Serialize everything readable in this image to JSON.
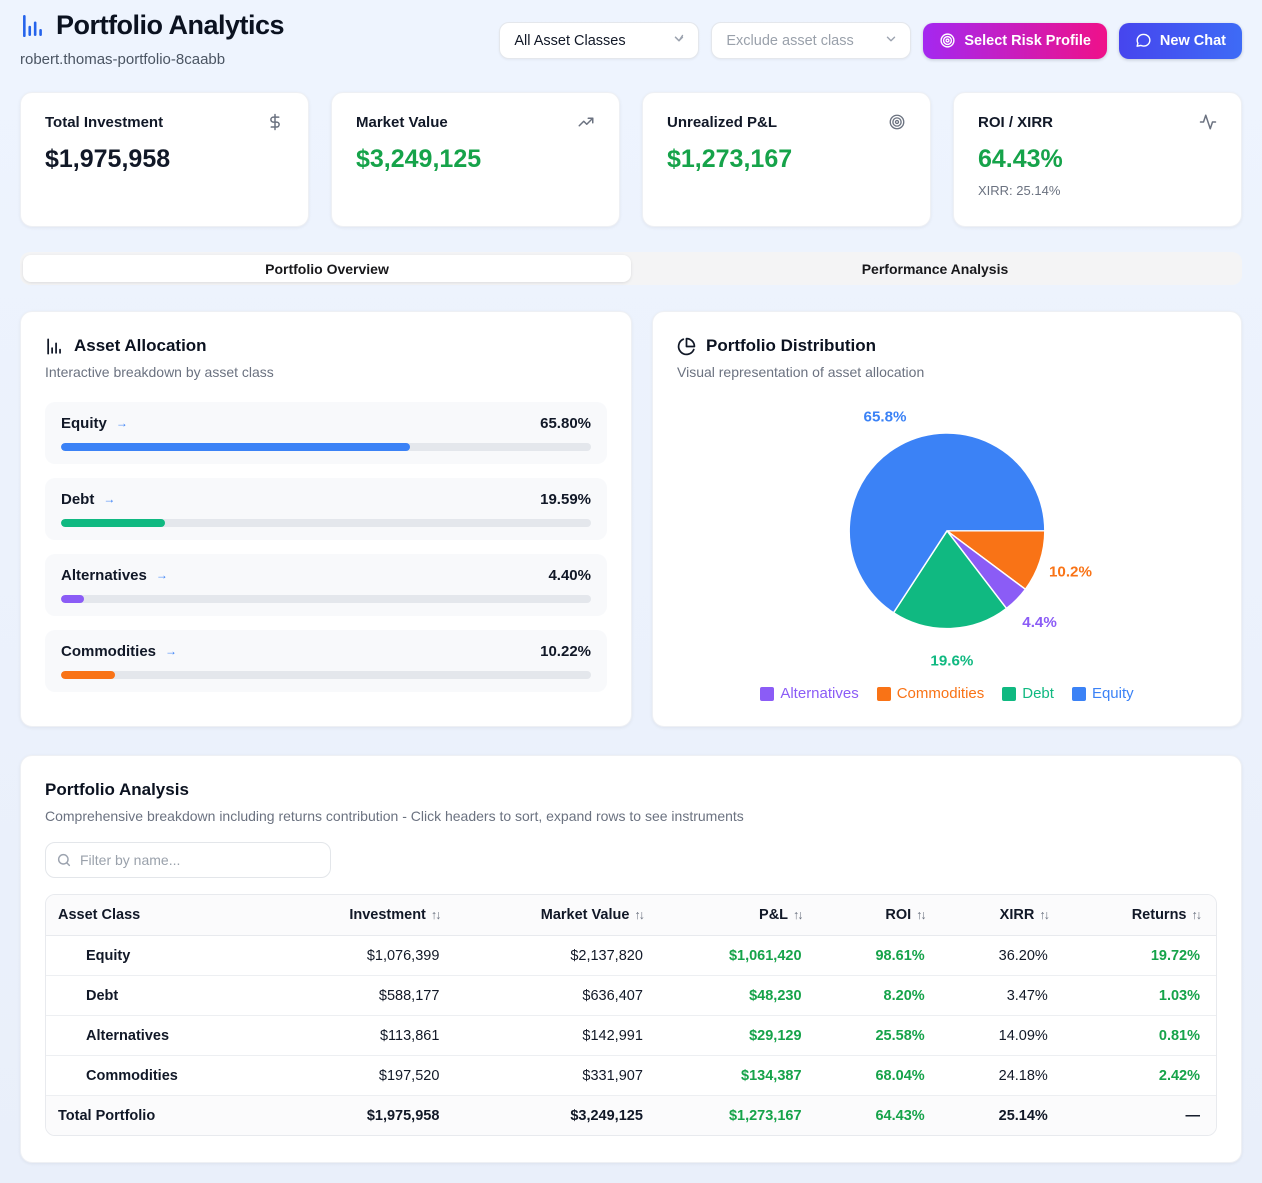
{
  "header": {
    "title": "Portfolio Analytics",
    "subtitle": "robert.thomas-portfolio-8caabb",
    "asset_class_filter": "All Asset Classes",
    "exclude_filter": "Exclude asset class",
    "risk_profile_button": "Select Risk Profile",
    "new_chat_button": "New Chat"
  },
  "stat_cards": [
    {
      "label": "Total Investment",
      "value": "$1,975,958",
      "icon": "dollar-icon",
      "positive": false,
      "sub": ""
    },
    {
      "label": "Market Value",
      "value": "$3,249,125",
      "icon": "trending-up-icon",
      "positive": true,
      "sub": ""
    },
    {
      "label": "Unrealized P&L",
      "value": "$1,273,167",
      "icon": "target-icon",
      "positive": true,
      "sub": ""
    },
    {
      "label": "ROI / XIRR",
      "value": "64.43%",
      "icon": "activity-icon",
      "positive": true,
      "sub": "XIRR: 25.14%"
    }
  ],
  "tabs": [
    {
      "label": "Portfolio Overview",
      "active": true
    },
    {
      "label": "Performance Analysis",
      "active": false
    }
  ],
  "allocation": {
    "title": "Asset Allocation",
    "subtitle": "Interactive breakdown by asset class",
    "rows": [
      {
        "name": "Equity",
        "percent_label": "65.80%",
        "percent": 65.8,
        "color": "#3b82f6"
      },
      {
        "name": "Debt",
        "percent_label": "19.59%",
        "percent": 19.59,
        "color": "#10b981"
      },
      {
        "name": "Alternatives",
        "percent_label": "4.40%",
        "percent": 4.4,
        "color": "#8b5cf6"
      },
      {
        "name": "Commodities",
        "percent_label": "10.22%",
        "percent": 10.22,
        "color": "#f97316"
      }
    ]
  },
  "distribution": {
    "title": "Portfolio Distribution",
    "subtitle": "Visual representation of asset allocation"
  },
  "chart_data": {
    "type": "pie",
    "title": "Portfolio Distribution",
    "start_angle_deg": 0,
    "direction": "clockwise",
    "labels": "percent-outside",
    "legend_position": "bottom",
    "slices": [
      {
        "label": "Commodities",
        "value": 10.2,
        "display": "10.2%",
        "color": "#f97316"
      },
      {
        "label": "Alternatives",
        "value": 4.4,
        "display": "4.4%",
        "color": "#8b5cf6"
      },
      {
        "label": "Debt",
        "value": 19.6,
        "display": "19.6%",
        "color": "#10b981"
      },
      {
        "label": "Equity",
        "value": 65.8,
        "display": "65.8%",
        "color": "#3b82f6"
      }
    ],
    "legend": [
      "Alternatives",
      "Commodities",
      "Debt",
      "Equity"
    ]
  },
  "analysis": {
    "title": "Portfolio Analysis",
    "subtitle": "Comprehensive breakdown including returns contribution - Click headers to sort, expand rows to see instruments",
    "filter_placeholder": "Filter by name...",
    "columns": [
      "Asset Class",
      "Investment",
      "Market Value",
      "P&L",
      "ROI",
      "XIRR",
      "Returns"
    ],
    "rows": [
      {
        "asset_class": "Equity",
        "investment": "$1,076,399",
        "market_value": "$2,137,820",
        "pnl": "$1,061,420",
        "roi": "98.61%",
        "xirr": "36.20%",
        "returns": "19.72%"
      },
      {
        "asset_class": "Debt",
        "investment": "$588,177",
        "market_value": "$636,407",
        "pnl": "$48,230",
        "roi": "8.20%",
        "xirr": "3.47%",
        "returns": "1.03%"
      },
      {
        "asset_class": "Alternatives",
        "investment": "$113,861",
        "market_value": "$142,991",
        "pnl": "$29,129",
        "roi": "25.58%",
        "xirr": "14.09%",
        "returns": "0.81%"
      },
      {
        "asset_class": "Commodities",
        "investment": "$197,520",
        "market_value": "$331,907",
        "pnl": "$134,387",
        "roi": "68.04%",
        "xirr": "24.18%",
        "returns": "2.42%"
      }
    ],
    "total": {
      "asset_class": "Total Portfolio",
      "investment": "$1,975,958",
      "market_value": "$3,249,125",
      "pnl": "$1,273,167",
      "roi": "64.43%",
      "xirr": "25.14%",
      "returns": "—"
    }
  },
  "colors": {
    "positive_green": "#16a34a",
    "accent_blue": "#3b82f6",
    "equity": "#3b82f6",
    "debt": "#10b981",
    "alternatives": "#8b5cf6",
    "commodities": "#f97316",
    "risk_button_gradient": [
      "#a428f0",
      "#ef1189"
    ],
    "chat_button_gradient": [
      "#4645ee",
      "#3e6bf6"
    ],
    "page_background": "#eef4fe"
  }
}
